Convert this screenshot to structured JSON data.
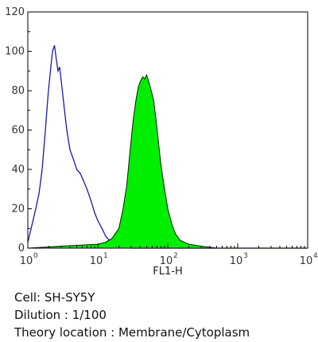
{
  "chart_data": {
    "type": "area",
    "xscale": "log",
    "xlim": [
      1,
      10000
    ],
    "ylim": [
      0,
      120
    ],
    "xlabel": "FL1-H",
    "ylabel": "",
    "x_ticks": [
      {
        "base": "10",
        "exp": "0"
      },
      {
        "base": "10",
        "exp": "1"
      },
      {
        "base": "10",
        "exp": "2"
      },
      {
        "base": "10",
        "exp": "3"
      },
      {
        "base": "10",
        "exp": "4"
      }
    ],
    "y_ticks": [
      "0",
      "20",
      "40",
      "60",
      "80",
      "100",
      "120"
    ],
    "series": [
      {
        "style": "outline",
        "color": "#1a1aa8",
        "x": [
          1.0,
          1.15,
          1.3,
          1.45,
          1.6,
          1.8,
          1.95,
          2.1,
          2.25,
          2.4,
          2.55,
          2.7,
          2.85,
          3.0,
          3.3,
          3.6,
          4.0,
          4.5,
          5.0,
          5.6,
          6.3,
          7.0,
          8.0,
          9.0,
          10.0,
          11.5,
          13.0,
          14.5,
          16.0,
          20.0,
          30.0,
          100.0,
          1000.0,
          10000.0
        ],
        "y": [
          3,
          12,
          20,
          28,
          40,
          62,
          78,
          90,
          100,
          103,
          96,
          90,
          92,
          85,
          72,
          60,
          50,
          45,
          40,
          38,
          34,
          30,
          24,
          18,
          14,
          10,
          6,
          4,
          2,
          1,
          0,
          0,
          0,
          0
        ]
      },
      {
        "style": "filled",
        "color": "#00ee00",
        "stroke": "#111111",
        "x": [
          1.0,
          3.0,
          10.0,
          13.0,
          16.0,
          20.0,
          23.0,
          26.0,
          29.0,
          32.0,
          35.0,
          38.0,
          41.0,
          44.0,
          47.0,
          50.0,
          54.0,
          58.0,
          63.0,
          68.0,
          73.0,
          80.0,
          90.0,
          100.0,
          115.0,
          130.0,
          150.0,
          200.0,
          300.0,
          500.0,
          1000.0,
          10000.0
        ],
        "y": [
          0,
          1,
          2,
          3,
          5,
          10,
          20,
          32,
          50,
          65,
          75,
          82,
          85,
          87,
          86,
          88,
          84,
          80,
          75,
          65,
          55,
          42,
          30,
          20,
          12,
          7,
          4,
          2,
          1,
          0,
          0,
          0
        ]
      }
    ]
  },
  "caption": {
    "cell": "Cell: SH-SY5Y",
    "dilution": "Dilution : 1/100",
    "location": "Theory location : Membrane/Cytoplasm"
  }
}
